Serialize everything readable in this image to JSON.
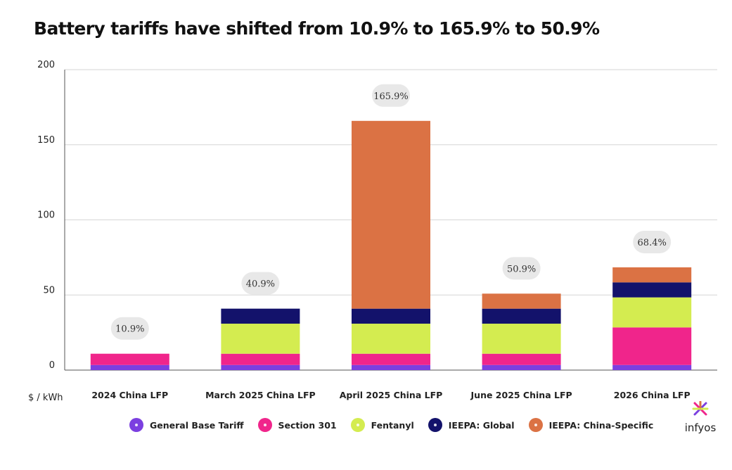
{
  "title": "Battery tariffs have shifted from 10.9% to 165.9% to 50.9%",
  "brand": {
    "name": "infyos"
  },
  "chart_data": {
    "type": "bar",
    "stacked": true,
    "title": "Battery tariffs have shifted from 10.9% to 165.9% to 50.9%",
    "ylabel": "$ / kWh",
    "xlabel": "",
    "ylim": [
      0,
      200
    ],
    "yticks": [
      0,
      50,
      100,
      150,
      200
    ],
    "grid": true,
    "legend_position": "bottom",
    "categories": [
      "2024 China LFP",
      "March 2025 China LFP",
      "April 2025 China LFP",
      "June 2025 China LFP",
      "2026 China LFP"
    ],
    "totals": [
      "10.9%",
      "40.9%",
      "165.9%",
      "50.9%",
      "68.4%"
    ],
    "series": [
      {
        "name": "General Base Tariff",
        "color": "#7b3fe0",
        "values": [
          3.4,
          3.4,
          3.4,
          3.4,
          3.4
        ]
      },
      {
        "name": "Section 301",
        "color": "#f0258b",
        "values": [
          7.5,
          7.5,
          7.5,
          7.5,
          25
        ]
      },
      {
        "name": "Fentanyl",
        "color": "#d4ec50",
        "values": [
          0,
          20,
          20,
          20,
          20
        ]
      },
      {
        "name": "IEEPA: Global",
        "color": "#13126b",
        "values": [
          0,
          10,
          10,
          10,
          10
        ]
      },
      {
        "name": "IEEPA: China-Specific",
        "color": "#db7244",
        "values": [
          0,
          0,
          125,
          10,
          10
        ]
      }
    ]
  }
}
